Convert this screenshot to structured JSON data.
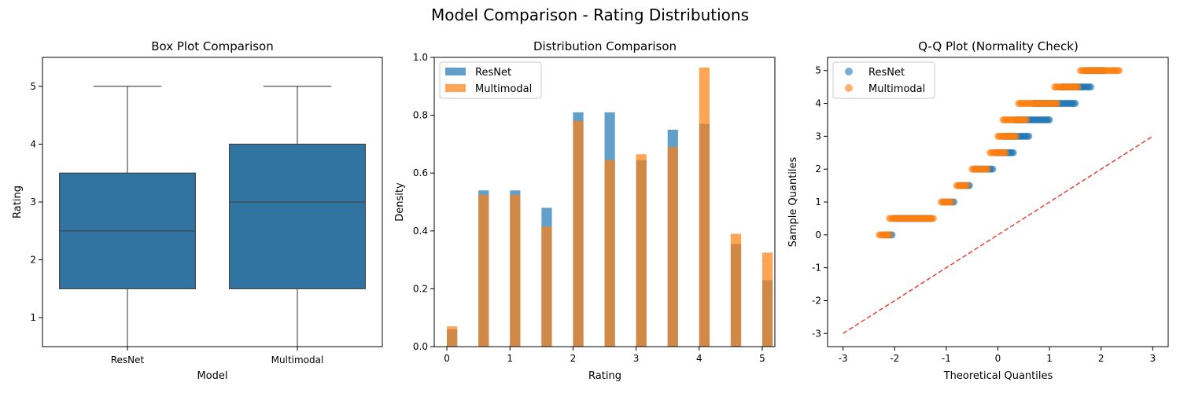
{
  "figure": {
    "title": "Model Comparison - Rating Distributions"
  },
  "colors": {
    "blue": "#1f77b4",
    "orange": "#ff7f0e",
    "box_fill": "#3274a1",
    "ref_line": "#e8433b"
  },
  "chart_data": [
    {
      "type": "box",
      "title": "Box Plot Comparison",
      "xlabel": "Model",
      "ylabel": "Rating",
      "categories": [
        "ResNet",
        "Multimodal"
      ],
      "ylim": [
        0.5,
        5.5
      ],
      "yticks": [
        1,
        2,
        3,
        4,
        5
      ],
      "boxes": [
        {
          "name": "ResNet",
          "whisker_low": 0,
          "q1": 1.5,
          "median": 2.5,
          "q3": 3.5,
          "whisker_high": 5
        },
        {
          "name": "Multimodal",
          "whisker_low": 0,
          "q1": 1.5,
          "median": 3,
          "q3": 4,
          "whisker_high": 5
        }
      ],
      "grid": false
    },
    {
      "type": "bar",
      "title": "Distribution Comparison",
      "xlabel": "Rating",
      "ylabel": "Density",
      "x": [
        0,
        0.5,
        1,
        1.5,
        2,
        2.5,
        3,
        3.5,
        4,
        4.5,
        5
      ],
      "xlim": [
        -0.2,
        5.2
      ],
      "ylim": [
        0,
        1.0
      ],
      "xticks": [
        0,
        1,
        2,
        3,
        4,
        5
      ],
      "yticks": [
        0.0,
        0.2,
        0.4,
        0.6,
        0.8,
        1.0
      ],
      "series": [
        {
          "name": "ResNet",
          "values": [
            0.06,
            0.54,
            0.54,
            0.48,
            0.81,
            0.81,
            0.645,
            0.75,
            0.77,
            0.355,
            0.23
          ]
        },
        {
          "name": "Multimodal",
          "values": [
            0.07,
            0.525,
            0.525,
            0.415,
            0.78,
            0.645,
            0.665,
            0.69,
            0.965,
            0.39,
            0.325
          ]
        }
      ],
      "legend": "upper-left",
      "grid": false
    },
    {
      "type": "scatter",
      "title": "Q-Q Plot (Normality Check)",
      "xlabel": "Theoretical Quantiles",
      "ylabel": "Sample Quantiles",
      "xlim": [
        -3.3,
        3.3
      ],
      "ylim": [
        -3.4,
        5.4
      ],
      "xticks": [
        -3,
        -2,
        -1,
        0,
        1,
        2,
        3
      ],
      "yticks": [
        -3,
        -2,
        -1,
        0,
        1,
        2,
        3,
        4,
        5
      ],
      "series": [
        {
          "name": "ResNet",
          "steps": [
            {
              "y": 0,
              "x_from": -2.2,
              "x_to": -2.05
            },
            {
              "y": 0.5,
              "x_from": -2.0,
              "x_to": -1.3
            },
            {
              "y": 1,
              "x_from": -1.05,
              "x_to": -0.85
            },
            {
              "y": 1.5,
              "x_from": -0.75,
              "x_to": -0.55
            },
            {
              "y": 2,
              "x_from": -0.45,
              "x_to": -0.1
            },
            {
              "y": 2.5,
              "x_from": -0.05,
              "x_to": 0.3
            },
            {
              "y": 3,
              "x_from": 0.1,
              "x_to": 0.6
            },
            {
              "y": 3.5,
              "x_from": 0.35,
              "x_to": 1.0
            },
            {
              "y": 4,
              "x_from": 0.7,
              "x_to": 1.5
            },
            {
              "y": 4.5,
              "x_from": 1.25,
              "x_to": 1.8
            },
            {
              "y": 5,
              "x_from": 1.7,
              "x_to": 2.05
            }
          ]
        },
        {
          "name": "Multimodal",
          "steps": [
            {
              "y": 0,
              "x_from": -2.3,
              "x_to": -2.1
            },
            {
              "y": 0.5,
              "x_from": -2.1,
              "x_to": -1.25
            },
            {
              "y": 1,
              "x_from": -1.1,
              "x_to": -0.9
            },
            {
              "y": 1.5,
              "x_from": -0.8,
              "x_to": -0.6
            },
            {
              "y": 2,
              "x_from": -0.5,
              "x_to": -0.2
            },
            {
              "y": 2.5,
              "x_from": -0.15,
              "x_to": 0.15
            },
            {
              "y": 3,
              "x_from": 0.0,
              "x_to": 0.35
            },
            {
              "y": 3.5,
              "x_from": 0.1,
              "x_to": 0.55
            },
            {
              "y": 4,
              "x_from": 0.4,
              "x_to": 1.15
            },
            {
              "y": 4.5,
              "x_from": 1.1,
              "x_to": 1.55
            },
            {
              "y": 5,
              "x_from": 1.6,
              "x_to": 2.35
            }
          ]
        }
      ],
      "reference_line": {
        "from": [
          -3,
          -3
        ],
        "to": [
          3,
          3
        ],
        "style": "dashed"
      },
      "legend": "upper-left",
      "grid": false
    }
  ]
}
